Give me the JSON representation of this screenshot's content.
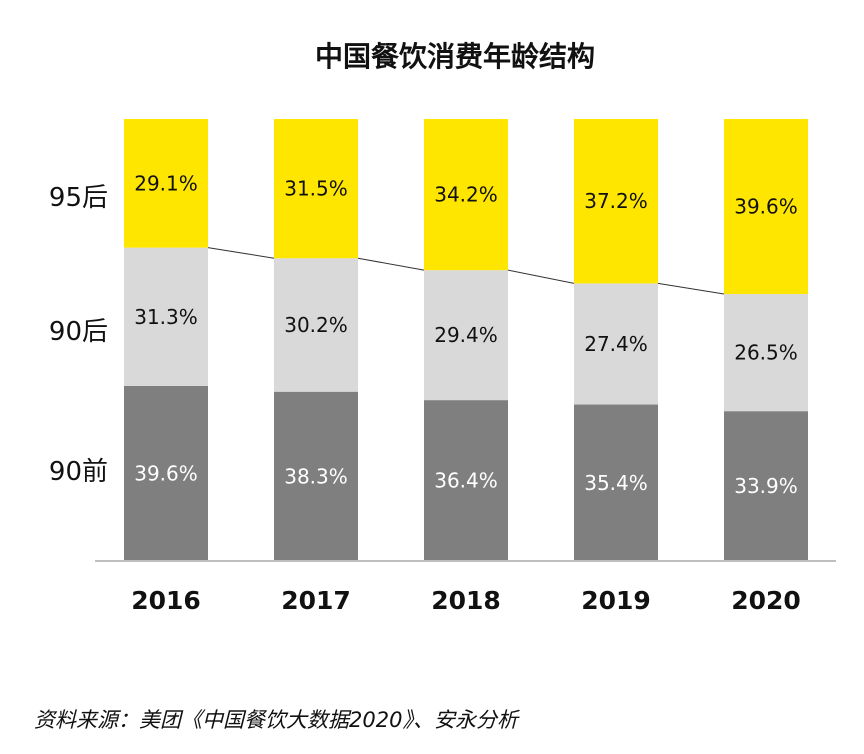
{
  "chart_data": {
    "type": "bar",
    "stacked": true,
    "normalized": true,
    "title": "中国餐饮消费年龄结构",
    "categories": [
      "2016",
      "2017",
      "2018",
      "2019",
      "2020"
    ],
    "series": [
      {
        "name": "90前",
        "values": [
          39.6,
          38.3,
          36.4,
          35.4,
          33.9
        ],
        "labels": [
          "39.6%",
          "38.3%",
          "36.4%",
          "35.4%",
          "33.9%"
        ],
        "color": "#7f7f7f",
        "label_color": "#ffffff"
      },
      {
        "name": "90后",
        "values": [
          31.3,
          30.2,
          29.4,
          27.4,
          26.5
        ],
        "labels": [
          "31.3%",
          "30.2%",
          "29.4%",
          "27.4%",
          "26.5%"
        ],
        "color": "#d9d9d9",
        "label_color": "#111111"
      },
      {
        "name": "95后",
        "values": [
          29.1,
          31.5,
          34.2,
          37.2,
          39.6
        ],
        "labels": [
          "29.1%",
          "31.5%",
          "34.2%",
          "37.2%",
          "39.6%"
        ],
        "color": "#ffe600",
        "label_color": "#111111"
      }
    ],
    "ylim": [
      0,
      100
    ],
    "legend": "left-row-labels",
    "connector_line": "top of 90后 segment",
    "source": "资料来源：美团《中国餐饮大数据2020》、安永分析"
  }
}
